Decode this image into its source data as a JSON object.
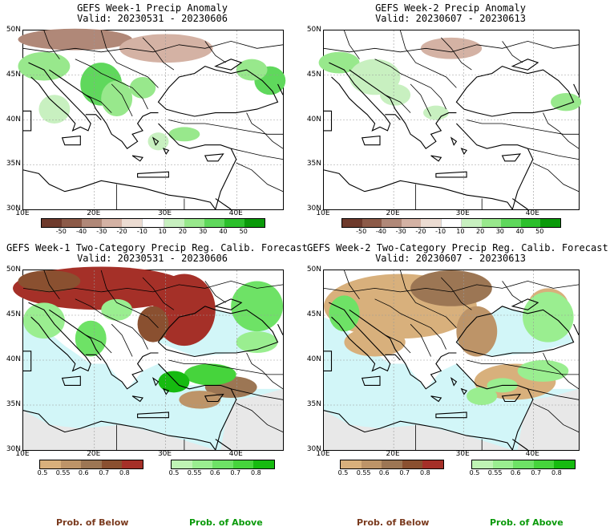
{
  "panels": [
    {
      "title": "GEFS Week-1 Precip Anomaly",
      "valid": "Valid: 20230531 - 20230606"
    },
    {
      "title": "GEFS Week-2 Precip Anomaly",
      "valid": "Valid: 20230607 - 20230613"
    },
    {
      "title": "GEFS Week-1 Two-Category Precip Reg. Calib. Forecast",
      "valid": "Valid: 20230531 - 20230606"
    },
    {
      "title": "GEFS Week-2 Two-Category Precip Reg. Calib. Forecast",
      "valid": "Valid: 20230607 - 20230613"
    }
  ],
  "lat_labels": [
    "50N",
    "45N",
    "40N",
    "35N",
    "30N"
  ],
  "lon_labels": [
    "10E",
    "20E",
    "30E",
    "40E"
  ],
  "anomaly_scale": {
    "labels": [
      "-50",
      "-40",
      "-30",
      "-20",
      "-10",
      "10",
      "20",
      "30",
      "40",
      "50"
    ],
    "colors": [
      "#6e3a2c",
      "#8c5a48",
      "#b08878",
      "#d4b2a4",
      "#ecdcd2",
      "#ffffff",
      "#c8f0c0",
      "#98e88c",
      "#5fd85c",
      "#2cc02c",
      "#0a9a0a"
    ]
  },
  "prob_below_scale": {
    "labels": [
      "0.5",
      "0.55",
      "0.6",
      "0.7",
      "0.8"
    ],
    "colors": [
      "#d8b07c",
      "#bd9468",
      "#9c7654",
      "#8a5030",
      "#a53028"
    ]
  },
  "prob_above_scale": {
    "labels": [
      "0.5",
      "0.55",
      "0.6",
      "0.7",
      "0.8"
    ],
    "colors": [
      "#bff4b4",
      "#9aee90",
      "#6ee266",
      "#46d43c",
      "#16bb10"
    ]
  },
  "footer": {
    "below": "Prob. of Below",
    "above": "Prob. of Above"
  },
  "colors": {
    "water_prob": "#d2f6f8",
    "land_nodata": "#e8e8e8",
    "below_text": "#7a3a1e",
    "above_text": "#0a9a0a"
  }
}
